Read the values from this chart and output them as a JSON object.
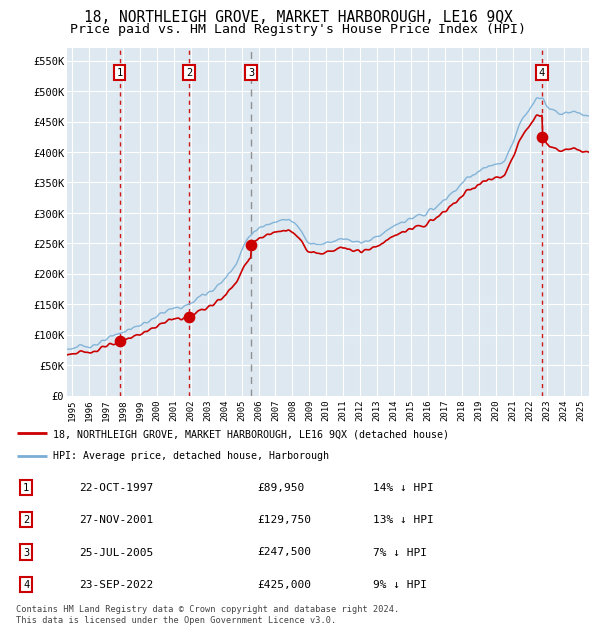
{
  "title1": "18, NORTHLEIGH GROVE, MARKET HARBOROUGH, LE16 9QX",
  "title2": "Price paid vs. HM Land Registry's House Price Index (HPI)",
  "ylim": [
    0,
    570000
  ],
  "yticks": [
    0,
    50000,
    100000,
    150000,
    200000,
    250000,
    300000,
    350000,
    400000,
    450000,
    500000,
    550000
  ],
  "ytick_labels": [
    "£0",
    "£50K",
    "£100K",
    "£150K",
    "£200K",
    "£250K",
    "£300K",
    "£350K",
    "£400K",
    "£450K",
    "£500K",
    "£550K"
  ],
  "xlim_start": 1994.7,
  "xlim_end": 2025.5,
  "xticks": [
    1995,
    1996,
    1997,
    1998,
    1999,
    2000,
    2001,
    2002,
    2003,
    2004,
    2005,
    2006,
    2007,
    2008,
    2009,
    2010,
    2011,
    2012,
    2013,
    2014,
    2015,
    2016,
    2017,
    2018,
    2019,
    2020,
    2021,
    2022,
    2023,
    2024,
    2025
  ],
  "sale_dates": [
    1997.81,
    2001.91,
    2005.56,
    2022.73
  ],
  "sale_prices": [
    89950,
    129750,
    247500,
    425000
  ],
  "sale_labels": [
    "1",
    "2",
    "3",
    "4"
  ],
  "vline_colors": [
    "#cc0000",
    "#cc0000",
    "#888888",
    "#cc0000"
  ],
  "legend_line1": "18, NORTHLEIGH GROVE, MARKET HARBOROUGH, LE16 9QX (detached house)",
  "legend_line2": "HPI: Average price, detached house, Harborough",
  "table_rows": [
    [
      "1",
      "22-OCT-1997",
      "£89,950",
      "14% ↓ HPI"
    ],
    [
      "2",
      "27-NOV-2001",
      "£129,750",
      "13% ↓ HPI"
    ],
    [
      "3",
      "25-JUL-2005",
      "£247,500",
      "7% ↓ HPI"
    ],
    [
      "4",
      "23-SEP-2022",
      "£425,000",
      "9% ↓ HPI"
    ]
  ],
  "footnote": "Contains HM Land Registry data © Crown copyright and database right 2024.\nThis data is licensed under the Open Government Licence v3.0.",
  "red_color": "#cc0000",
  "blue_color": "#7aaed6",
  "bg_color": "#dde8f0",
  "grid_color": "#ffffff",
  "title_fontsize": 10.5,
  "subtitle_fontsize": 9.5
}
